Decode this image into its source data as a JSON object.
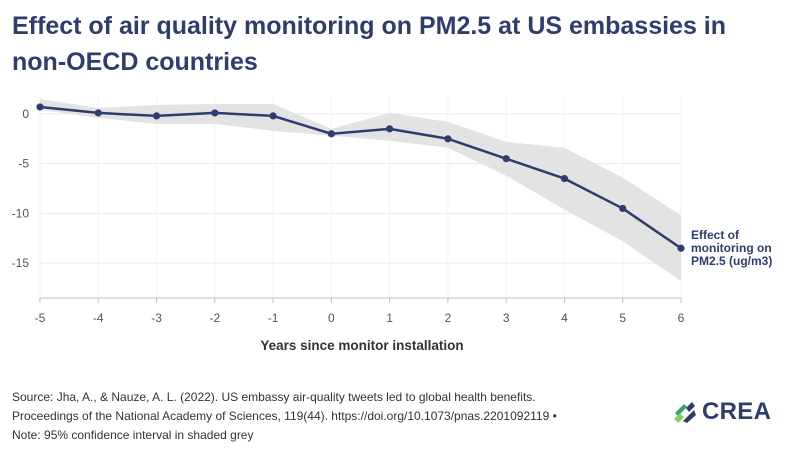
{
  "title": "Effect of air quality monitoring on PM2.5 at US embassies in non-OECD countries",
  "chart_data": {
    "type": "line",
    "title": "Effect of air quality monitoring on PM2.5 at US embassies in non-OECD countries",
    "xlabel": "Years since monitor installation",
    "ylabel": "",
    "x": [
      -5,
      -4,
      -3,
      -2,
      -1,
      0,
      1,
      2,
      3,
      4,
      5,
      6
    ],
    "x_ticks": [
      "-5",
      "-4",
      "-3",
      "-2",
      "-1",
      "0",
      "1",
      "2",
      "3",
      "4",
      "5",
      "6"
    ],
    "y_ticks": [
      "0",
      "-5",
      "-10",
      "-15"
    ],
    "y_tick_values": [
      0,
      -5,
      -10,
      -15
    ],
    "xlim": [
      -5,
      6
    ],
    "ylim": [
      -18.5,
      1.8
    ],
    "grid": true,
    "series": [
      {
        "name": "Effect of monitoring on PM2.5 (ug/m3)",
        "label_lines": [
          "Effect of",
          "monitoring on",
          "PM2.5 (ug/m3)"
        ],
        "color": "#2f3c6e",
        "values": [
          0.7,
          0.1,
          -0.2,
          0.1,
          -0.2,
          -2.0,
          -1.5,
          -2.5,
          -4.5,
          -6.5,
          -9.5,
          -13.5
        ],
        "ci_lower": [
          0.4,
          -0.4,
          -1.0,
          -1.0,
          -1.7,
          -2.2,
          -2.7,
          -3.4,
          -6.2,
          -9.6,
          -12.8,
          -16.8
        ],
        "ci_upper": [
          1.5,
          0.6,
          0.9,
          1.0,
          1.0,
          -1.5,
          0.1,
          -0.8,
          -2.8,
          -3.4,
          -6.4,
          -10.2
        ]
      }
    ],
    "ci_color": "#e3e3e3",
    "note": "95% confidence interval in shaded grey"
  },
  "source_lines": [
    "Source: Jha, A., & Nauze, A. L. (2022). US embassy air-quality tweets led to global health benefits.",
    "Proceedings of the National Academy of Sciences, 119(44). https://doi.org/10.1073/pnas.2201092119 •",
    "Note: 95% confidence interval in shaded grey"
  ],
  "logo": {
    "text": "CREA",
    "name": "crea-logo",
    "colors": [
      "#2f3c6e",
      "#36a46a",
      "#8ccf5a"
    ]
  }
}
